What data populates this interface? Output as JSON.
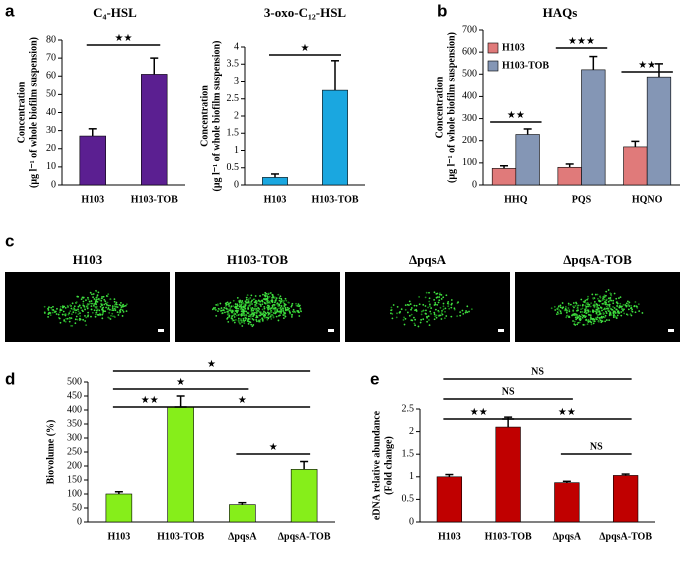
{
  "chart_data": [
    {
      "panel": "a",
      "type": "bar",
      "title": "C₄-HSL",
      "ylabel": [
        "Concentration",
        "(μg l⁻¹ of whole biofilm suspension)"
      ],
      "categories": [
        "H103",
        "H103-TOB"
      ],
      "values": [
        27,
        61
      ],
      "error": [
        4,
        9
      ],
      "color": "#5b1f91",
      "ylim": [
        0,
        80
      ],
      "yticks": [
        0,
        10,
        20,
        30,
        40,
        50,
        60,
        70,
        80
      ],
      "significance": [
        {
          "groups": [
            0,
            1
          ],
          "label": "★★"
        }
      ]
    },
    {
      "type": "bar",
      "title": "3-oxo-C₁₂-HSL",
      "ylabel": [
        "Concentration",
        "(μg l⁻¹ of whole biofilm suspension)"
      ],
      "categories": [
        "H103",
        "H103-TOB"
      ],
      "values": [
        0.22,
        2.75
      ],
      "error": [
        0.1,
        0.85
      ],
      "color": "#1aa7e0",
      "ylim": [
        0,
        4
      ],
      "yticks": [
        0,
        0.5,
        1,
        1.5,
        2,
        2.5,
        3,
        3.5,
        4
      ],
      "significance": [
        {
          "groups": [
            0,
            1
          ],
          "label": "★"
        }
      ]
    },
    {
      "panel": "b",
      "type": "grouped_bar",
      "title": "HAQs",
      "ylabel": [
        "Concentration",
        "(μg l⁻¹ of whole biofilm suspension)"
      ],
      "categories": [
        "HHQ",
        "PQS",
        "HQNO"
      ],
      "series": [
        {
          "name": "H103",
          "color": "#e07a7a",
          "values": [
            75,
            80,
            172
          ],
          "error": [
            12,
            15,
            25
          ]
        },
        {
          "name": "H103-TOB",
          "color": "#8496b5",
          "values": [
            228,
            520,
            487
          ],
          "error": [
            25,
            60,
            60
          ]
        }
      ],
      "ylim": [
        0,
        700
      ],
      "yticks": [
        0,
        100,
        200,
        300,
        400,
        500,
        600,
        700
      ],
      "significance": [
        {
          "category": 0,
          "label": "★★"
        },
        {
          "category": 1,
          "label": "★★★"
        },
        {
          "category": 2,
          "label": "★★"
        }
      ]
    },
    {
      "panel": "d",
      "type": "bar",
      "ylabel": [
        "Biovolume (%)"
      ],
      "categories": [
        "H103",
        "H103-TOB",
        "ΔpqsA",
        "ΔpqsA-TOB"
      ],
      "values": [
        100,
        410,
        62,
        188
      ],
      "error": [
        8,
        40,
        7,
        28
      ],
      "color": "#86ee1a",
      "ylim": [
        0,
        500
      ],
      "yticks": [
        0,
        50,
        100,
        150,
        200,
        250,
        300,
        350,
        400,
        450,
        500
      ],
      "significance": [
        {
          "groups": [
            0,
            3
          ],
          "label": "★"
        },
        {
          "groups": [
            0,
            2
          ],
          "label": "★"
        },
        {
          "groups": [
            0,
            1
          ],
          "label": "★★"
        },
        {
          "groups": [
            1,
            3
          ],
          "label": "★"
        },
        {
          "groups": [
            2,
            3
          ],
          "label": "★"
        }
      ]
    },
    {
      "panel": "e",
      "type": "bar",
      "ylabel": [
        "eDNA relative abundance",
        "(Fold change)"
      ],
      "categories": [
        "H103",
        "H103-TOB",
        "ΔpqsA",
        "ΔpqsA-TOB"
      ],
      "values": [
        1.0,
        2.1,
        0.87,
        1.03
      ],
      "error": [
        0.05,
        0.22,
        0.03,
        0.03
      ],
      "color": "#c00000",
      "ylim": [
        0,
        2.5
      ],
      "yticks": [
        0,
        0.5,
        1,
        1.5,
        2,
        2.5
      ],
      "significance": [
        {
          "groups": [
            0,
            3
          ],
          "label": "NS"
        },
        {
          "groups": [
            0,
            2
          ],
          "label": "NS"
        },
        {
          "groups": [
            0,
            1
          ],
          "label": "★★"
        },
        {
          "groups": [
            1,
            3
          ],
          "label": "★★"
        },
        {
          "groups": [
            2,
            3
          ],
          "label": "NS"
        }
      ]
    }
  ],
  "micrographs": {
    "panel": "c",
    "labels": [
      "H103",
      "H103-TOB",
      "ΔpqsA",
      "ΔpqsA-TOB"
    ]
  }
}
